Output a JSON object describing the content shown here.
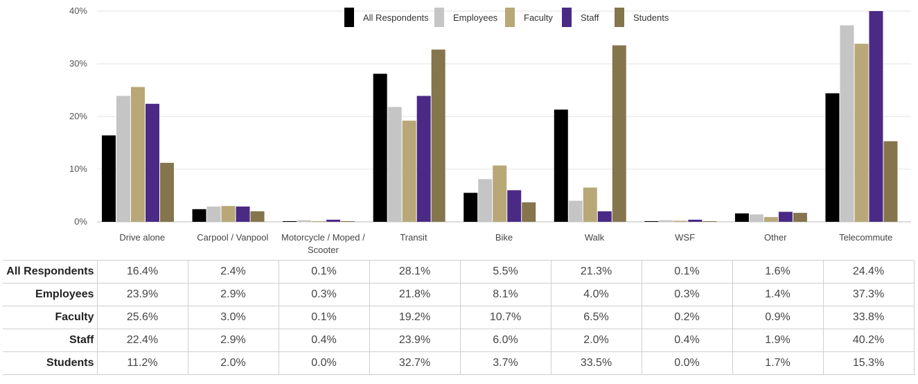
{
  "chart_data": {
    "type": "bar",
    "categories": [
      "Drive alone",
      "Carpool / Vanpool",
      "Motorcycle / Moped / Scooter",
      "Transit",
      "Bike",
      "Walk",
      "WSF",
      "Other",
      "Telecommute"
    ],
    "series": [
      {
        "name": "All Respondents",
        "color": "#000000",
        "values": [
          16.4,
          2.4,
          0.1,
          28.1,
          5.5,
          21.3,
          0.1,
          1.6,
          24.4
        ]
      },
      {
        "name": "Employees",
        "color": "#c5c5c5",
        "values": [
          23.9,
          2.9,
          0.3,
          21.8,
          8.1,
          4.0,
          0.3,
          1.4,
          37.3
        ]
      },
      {
        "name": "Faculty",
        "color": "#b8a878",
        "values": [
          25.6,
          3.0,
          0.1,
          19.2,
          10.7,
          6.5,
          0.2,
          0.9,
          33.8
        ]
      },
      {
        "name": "Staff",
        "color": "#4b2a85",
        "values": [
          22.4,
          2.9,
          0.4,
          23.9,
          6.0,
          2.0,
          0.4,
          1.9,
          40.2
        ]
      },
      {
        "name": "Students",
        "color": "#85754d",
        "values": [
          11.2,
          2.0,
          0.0,
          32.7,
          3.7,
          33.5,
          0.0,
          1.7,
          15.3
        ]
      }
    ],
    "y_ticks": [
      "0%",
      "10%",
      "20%",
      "30%",
      "40%"
    ],
    "ylim": [
      0,
      40
    ],
    "grid": true,
    "legend_position": "top-center",
    "table": {
      "row_labels": [
        "All Respondents",
        "Employees",
        "Faculty",
        "Staff",
        "Students"
      ],
      "rows": [
        [
          "16.4%",
          "2.4%",
          "0.1%",
          "28.1%",
          "5.5%",
          "21.3%",
          "0.1%",
          "1.6%",
          "24.4%"
        ],
        [
          "23.9%",
          "2.9%",
          "0.3%",
          "21.8%",
          "8.1%",
          "4.0%",
          "0.3%",
          "1.4%",
          "37.3%"
        ],
        [
          "25.6%",
          "3.0%",
          "0.1%",
          "19.2%",
          "10.7%",
          "6.5%",
          "0.2%",
          "0.9%",
          "33.8%"
        ],
        [
          "22.4%",
          "2.9%",
          "0.4%",
          "23.9%",
          "6.0%",
          "2.0%",
          "0.4%",
          "1.9%",
          "40.2%"
        ],
        [
          "11.2%",
          "2.0%",
          "0.0%",
          "32.7%",
          "3.7%",
          "33.5%",
          "0.0%",
          "1.7%",
          "15.3%"
        ]
      ]
    }
  }
}
